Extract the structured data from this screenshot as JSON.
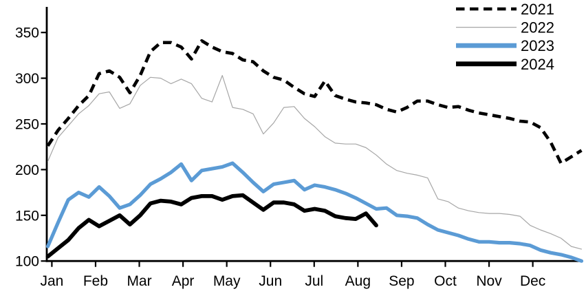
{
  "chart_data": {
    "type": "line",
    "title": "",
    "x_unit": "weekly",
    "x_axis": {
      "tick_labels": [
        "Jan",
        "Feb",
        "Mar",
        "Apr",
        "May",
        "Jun",
        "Jul",
        "Aug",
        "Sep",
        "Oct",
        "Nov",
        "Dec"
      ]
    },
    "y_axis": {
      "min": 100,
      "max": 350,
      "tick_step": 50,
      "tick_labels": [
        "100",
        "150",
        "200",
        "250",
        "300",
        "350"
      ]
    },
    "legend": {
      "position": "top-right",
      "entries": [
        "2021",
        "2022",
        "2023",
        "2024"
      ]
    },
    "grid": false,
    "series": [
      {
        "name": "2021",
        "style": "dashed",
        "color": "#000000",
        "stroke_width": 4.6,
        "values": [
          226,
          243,
          256,
          270,
          281,
          305,
          308,
          301,
          284,
          303,
          329,
          339,
          339,
          334,
          321,
          341,
          334,
          329,
          327,
          320,
          318,
          308,
          301,
          298,
          290,
          283,
          280,
          297,
          281,
          277,
          274,
          273,
          271,
          266,
          263,
          268,
          275,
          275,
          271,
          268,
          269,
          265,
          262,
          260,
          258,
          256,
          253,
          252,
          246,
          230,
          207,
          214,
          221
        ]
      },
      {
        "name": "2022",
        "style": "solid-thin",
        "color": "#a6a6a6",
        "stroke_width": 1.2,
        "values": [
          209,
          235,
          248,
          261,
          270,
          283,
          285,
          267,
          272,
          292,
          301,
          300,
          294,
          299,
          294,
          278,
          274,
          303,
          268,
          266,
          261,
          239,
          251,
          268,
          269,
          256,
          247,
          236,
          229,
          228,
          228,
          224,
          216,
          206,
          199,
          196,
          194,
          191,
          168,
          165,
          158,
          155,
          153,
          152,
          152,
          151,
          149,
          139,
          134,
          130,
          125,
          116,
          113
        ]
      },
      {
        "name": "2023",
        "style": "solid-thick",
        "color": "#5b9bd5",
        "stroke_width": 5.2,
        "values": [
          116,
          142,
          167,
          175,
          170,
          181,
          171,
          158,
          162,
          172,
          184,
          190,
          197,
          206,
          188,
          199,
          201,
          203,
          207,
          197,
          186,
          176,
          184,
          186,
          188,
          178,
          183,
          181,
          178,
          174,
          169,
          163,
          157,
          158,
          150,
          149,
          147,
          140,
          134,
          131,
          128,
          124,
          121,
          121,
          120,
          120,
          119,
          117,
          112,
          109,
          107,
          104,
          100
        ]
      },
      {
        "name": "2024",
        "style": "solid-thick",
        "color": "#000000",
        "stroke_width": 5.8,
        "values": [
          105,
          114,
          123,
          136,
          145,
          138,
          144,
          150,
          140,
          150,
          163,
          166,
          165,
          162,
          169,
          171,
          171,
          167,
          171,
          172,
          164,
          156,
          164,
          164,
          162,
          155,
          157,
          155,
          149,
          147,
          146,
          152,
          139
        ]
      }
    ]
  }
}
